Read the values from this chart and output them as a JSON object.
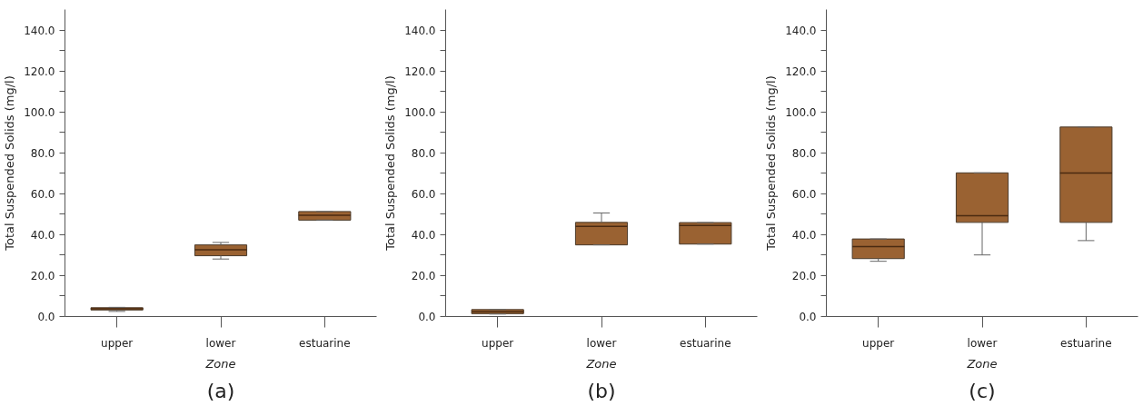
{
  "chart_data": [
    {
      "type": "box",
      "categories": [
        "upper",
        "lower",
        "estuarine"
      ],
      "xlabel": "Zone",
      "ylabel": "Total Suspended Solids (mg/l)",
      "annotations": [
        "(a)"
      ],
      "color": "#9a6232",
      "grid": false,
      "ylim": [
        0,
        150
      ],
      "yticks": [
        {
          "value": 0,
          "label": "0.0"
        },
        {
          "value": 10,
          "label": null
        },
        {
          "value": 20,
          "label": "20.0"
        },
        {
          "value": 30,
          "label": null
        },
        {
          "value": 40,
          "label": "40.0"
        },
        {
          "value": 50,
          "label": null
        },
        {
          "value": 60,
          "label": "60.0"
        },
        {
          "value": 70,
          "label": null
        },
        {
          "value": 80,
          "label": "80.0"
        },
        {
          "value": 90,
          "label": null
        },
        {
          "value": 100,
          "label": "100.0"
        },
        {
          "value": 110,
          "label": null
        },
        {
          "value": 120,
          "label": "120.0"
        },
        {
          "value": 130,
          "label": null
        },
        {
          "value": 140,
          "label": "140.0"
        }
      ],
      "boxes": [
        {
          "low": 2.5,
          "q1": 3.2,
          "median": 3.8,
          "q3": 4.3,
          "high": 4.5
        },
        {
          "low": 28.1,
          "q1": 29.7,
          "median": 32.6,
          "q3": 35.0,
          "high": 36.2
        },
        {
          "low": 47.1,
          "q1": 47.1,
          "median": 49.5,
          "q3": 51.3,
          "high": 51.3
        }
      ]
    },
    {
      "type": "box",
      "categories": [
        "upper",
        "lower",
        "estuarine"
      ],
      "xlabel": "Zone",
      "ylabel": "Total Suspended Solids (mg/l)",
      "annotations": [
        "(b)"
      ],
      "color": "#9a6232",
      "grid": false,
      "ylim": [
        0,
        150
      ],
      "yticks": [
        {
          "value": 0,
          "label": "0.0"
        },
        {
          "value": 10,
          "label": null
        },
        {
          "value": 20,
          "label": "20.0"
        },
        {
          "value": 30,
          "label": null
        },
        {
          "value": 40,
          "label": "40.0"
        },
        {
          "value": 50,
          "label": null
        },
        {
          "value": 60,
          "label": "60.0"
        },
        {
          "value": 70,
          "label": null
        },
        {
          "value": 80,
          "label": "80.0"
        },
        {
          "value": 90,
          "label": null
        },
        {
          "value": 100,
          "label": "100.0"
        },
        {
          "value": 110,
          "label": null
        },
        {
          "value": 120,
          "label": "120.0"
        },
        {
          "value": 130,
          "label": null
        },
        {
          "value": 140,
          "label": "140.0"
        }
      ],
      "boxes": [
        {
          "low": 1.2,
          "q1": 1.4,
          "median": 2.3,
          "q3": 3.4,
          "high": 3.4
        },
        {
          "low": 35.0,
          "q1": 35.0,
          "median": 44.0,
          "q3": 46.0,
          "high": 50.6
        },
        {
          "low": 35.4,
          "q1": 35.4,
          "median": 44.5,
          "q3": 45.9,
          "high": 45.9
        }
      ]
    },
    {
      "type": "box",
      "categories": [
        "upper",
        "lower",
        "estuarine"
      ],
      "xlabel": "Zone",
      "ylabel": "Total Suspended Solids (mg/l)",
      "annotations": [
        "(c)"
      ],
      "color": "#9a6232",
      "grid": false,
      "ylim": [
        0,
        150
      ],
      "yticks": [
        {
          "value": 0,
          "label": "0.0"
        },
        {
          "value": 10,
          "label": null
        },
        {
          "value": 20,
          "label": "20.0"
        },
        {
          "value": 30,
          "label": null
        },
        {
          "value": 40,
          "label": "40.0"
        },
        {
          "value": 50,
          "label": null
        },
        {
          "value": 60,
          "label": "60.0"
        },
        {
          "value": 70,
          "label": null
        },
        {
          "value": 80,
          "label": "80.0"
        },
        {
          "value": 90,
          "label": null
        },
        {
          "value": 100,
          "label": "100.0"
        },
        {
          "value": 110,
          "label": null
        },
        {
          "value": 120,
          "label": "120.0"
        },
        {
          "value": 130,
          "label": null
        },
        {
          "value": 140,
          "label": "140.0"
        }
      ],
      "boxes": [
        {
          "low": 27.0,
          "q1": 28.3,
          "median": 34.2,
          "q3": 37.9,
          "high": 37.9
        },
        {
          "low": 30.1,
          "q1": 46.0,
          "median": 49.3,
          "q3": 70.2,
          "high": 70.2
        },
        {
          "low": 37.1,
          "q1": 46.0,
          "median": 70.1,
          "q3": 92.6,
          "high": 92.6
        }
      ]
    }
  ]
}
